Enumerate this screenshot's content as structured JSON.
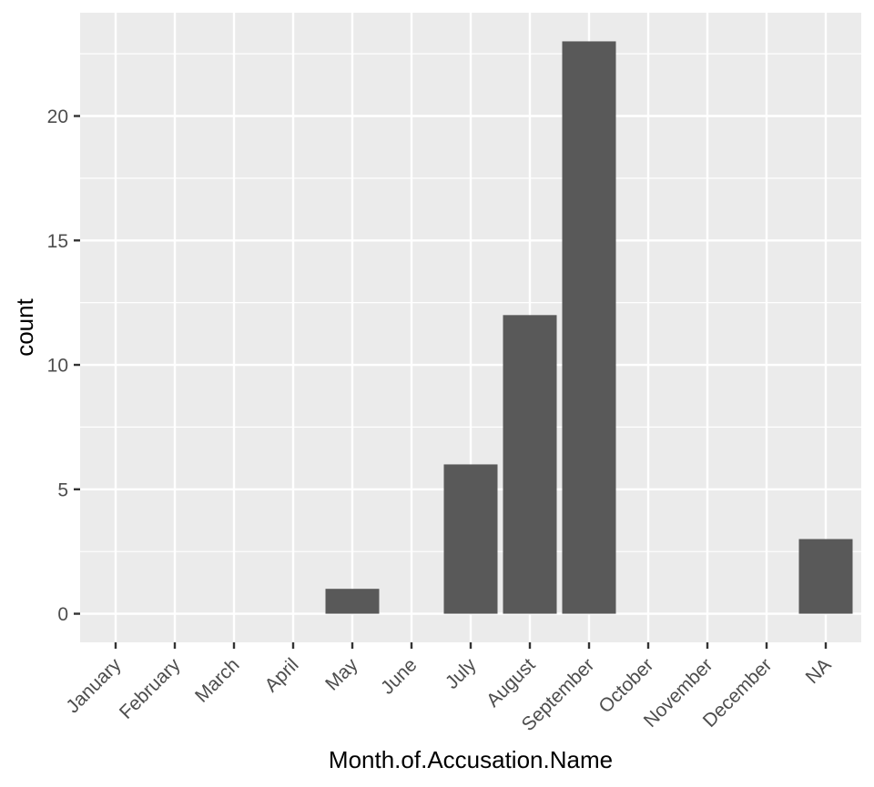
{
  "chart_data": {
    "type": "bar",
    "title": "",
    "xlabel": "Month.of.Accusation.Name",
    "ylabel": "count",
    "categories": [
      "January",
      "February",
      "March",
      "April",
      "May",
      "June",
      "July",
      "August",
      "September",
      "October",
      "November",
      "December",
      "NA"
    ],
    "values": [
      0,
      0,
      0,
      0,
      1,
      0,
      6,
      12,
      23,
      0,
      0,
      0,
      3
    ],
    "ylim": [
      -1.15,
      24.15
    ],
    "yticks": [
      0,
      5,
      10,
      15,
      20
    ],
    "grid": true,
    "legend": "none",
    "colors": {
      "panel_background": "#ebebeb",
      "grid_major": "#ffffff",
      "bar_fill": "#595959",
      "tick_mark": "#333333",
      "tick_text": "#4d4d4d",
      "axis_title": "#000000"
    }
  }
}
